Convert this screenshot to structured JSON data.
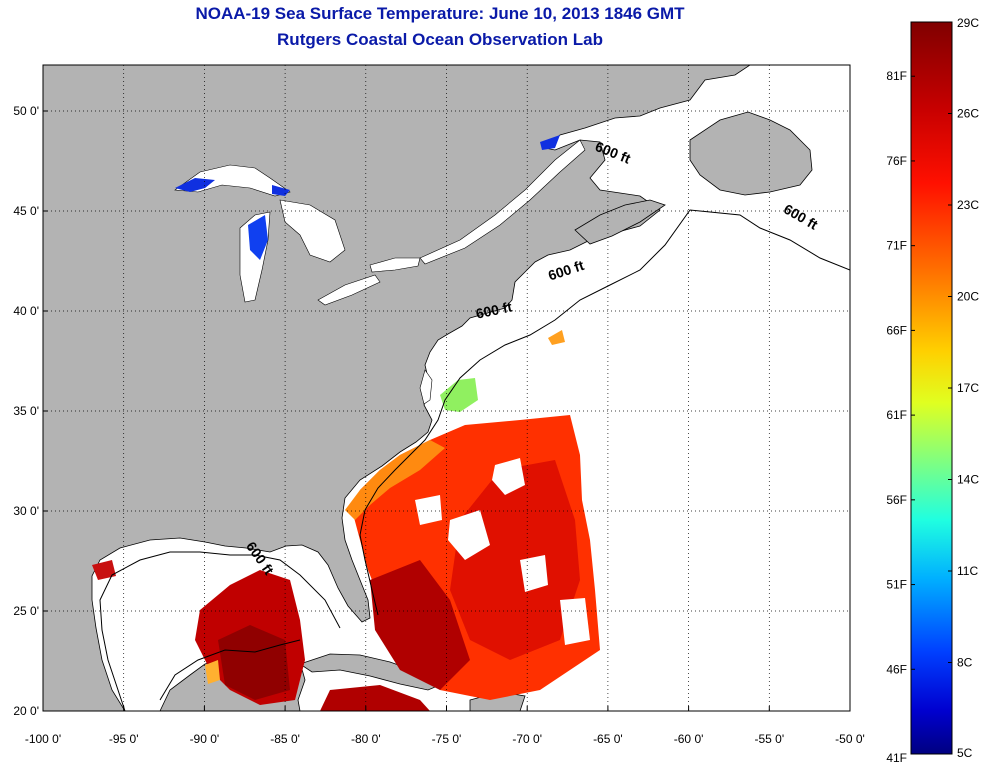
{
  "title": "NOAA-19 Sea Surface Temperature:  June 10, 2013 1846 GMT",
  "subtitle": "Rutgers Coastal Ocean Observation Lab",
  "colors": {
    "land": "#b3b3b3",
    "ocean": "#ffffff",
    "title": "#0a1aa8",
    "grid": "#000000"
  },
  "map": {
    "lon_range": [
      -100,
      -50
    ],
    "lat_range": [
      20,
      52.3
    ],
    "lon_ticks": [
      {
        "value": -100,
        "label": "-100 0'"
      },
      {
        "value": -95,
        "label": "-95 0'"
      },
      {
        "value": -90,
        "label": "-90 0'"
      },
      {
        "value": -85,
        "label": "-85 0'"
      },
      {
        "value": -80,
        "label": "-80 0'"
      },
      {
        "value": -75,
        "label": "-75 0'"
      },
      {
        "value": -70,
        "label": "-70 0'"
      },
      {
        "value": -65,
        "label": "-65 0'"
      },
      {
        "value": -60,
        "label": "-60 0'"
      },
      {
        "value": -55,
        "label": "-55 0'"
      },
      {
        "value": -50,
        "label": "-50 0'"
      }
    ],
    "lat_ticks": [
      {
        "value": 20,
        "label": "20 0'"
      },
      {
        "value": 25,
        "label": "25 0'"
      },
      {
        "value": 30,
        "label": "30 0'"
      },
      {
        "value": 35,
        "label": "35 0'"
      },
      {
        "value": 40,
        "label": "40 0'"
      },
      {
        "value": 45,
        "label": "45 0'"
      },
      {
        "value": 50,
        "label": "50 0'"
      }
    ],
    "grid": "dotted",
    "contour_labels": [
      {
        "text": "600 ft",
        "lon": -64.8,
        "lat": 47.7,
        "rotate": 22
      },
      {
        "text": "600 ft",
        "lon": -53.2,
        "lat": 44.5,
        "rotate": 30
      },
      {
        "text": "600 ft",
        "lon": -67.5,
        "lat": 41.8,
        "rotate": -18
      },
      {
        "text": "600 ft",
        "lon": -72.0,
        "lat": 39.8,
        "rotate": -12
      },
      {
        "text": "600 ft",
        "lon": -86.8,
        "lat": 27.5,
        "rotate": 55
      }
    ]
  },
  "colorbar": {
    "range_c": [
      5,
      29
    ],
    "celsius_ticks": [
      {
        "value": 29,
        "label": "29C"
      },
      {
        "value": 26,
        "label": "26C"
      },
      {
        "value": 23,
        "label": "23C"
      },
      {
        "value": 20,
        "label": "20C"
      },
      {
        "value": 17,
        "label": "17C"
      },
      {
        "value": 14,
        "label": "14C"
      },
      {
        "value": 11,
        "label": "11C"
      },
      {
        "value": 8,
        "label": "8C"
      },
      {
        "value": 5,
        "label": "5C"
      }
    ],
    "fahrenheit_ticks": [
      {
        "value": 81,
        "label": "81F"
      },
      {
        "value": 76,
        "label": "76F"
      },
      {
        "value": 71,
        "label": "71F"
      },
      {
        "value": 66,
        "label": "66F"
      },
      {
        "value": 61,
        "label": "61F"
      },
      {
        "value": 56,
        "label": "56F"
      },
      {
        "value": 51,
        "label": "51F"
      },
      {
        "value": 46,
        "label": "46F"
      },
      {
        "value": 41,
        "label": "41F"
      }
    ],
    "gradient": [
      "#800000",
      "#ff0000",
      "#ff8000",
      "#ffff00",
      "#80ff80",
      "#00ffff",
      "#0080ff",
      "#0000ff",
      "#000080"
    ]
  }
}
